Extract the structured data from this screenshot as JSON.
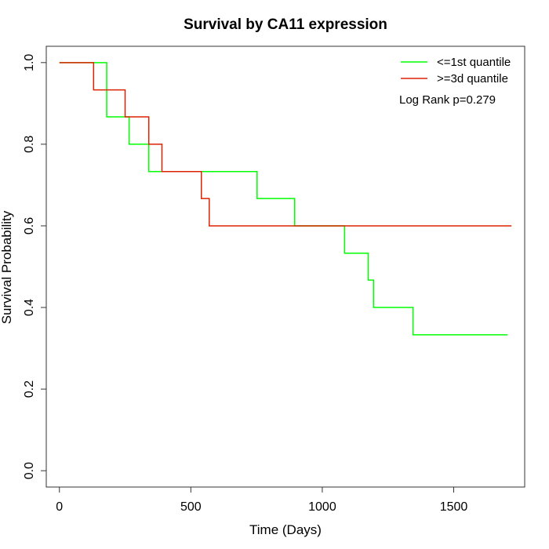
{
  "chart_data": {
    "type": "line",
    "title": "Survival by CA11 expression",
    "xlabel": "Time (Days)",
    "ylabel": "Survival Probability",
    "xlim": [
      -50,
      1770
    ],
    "ylim": [
      -0.04,
      1.04
    ],
    "x_ticks": [
      0,
      500,
      1000,
      1500
    ],
    "x_tick_labels": [
      "0",
      "500",
      "1000",
      "1500"
    ],
    "y_ticks": [
      0.0,
      0.2,
      0.4,
      0.6,
      0.8,
      1.0
    ],
    "y_tick_labels": [
      "0.0",
      "0.2",
      "0.4",
      "0.6",
      "0.8",
      "1.0"
    ],
    "grid": false,
    "legend_position": "top-right",
    "annotation": "Log Rank p=0.279",
    "series": [
      {
        "name": "<=1st quantile",
        "color": "#00ff00",
        "step": true,
        "points": [
          [
            0,
            1.0
          ],
          [
            170,
            1.0
          ],
          [
            180,
            0.867
          ],
          [
            265,
            0.867
          ],
          [
            265,
            0.8
          ],
          [
            340,
            0.8
          ],
          [
            340,
            0.733
          ],
          [
            752,
            0.733
          ],
          [
            752,
            0.667
          ],
          [
            895,
            0.667
          ],
          [
            895,
            0.6
          ],
          [
            1085,
            0.6
          ],
          [
            1085,
            0.533
          ],
          [
            1175,
            0.533
          ],
          [
            1175,
            0.467
          ],
          [
            1195,
            0.467
          ],
          [
            1195,
            0.4
          ],
          [
            1345,
            0.4
          ],
          [
            1345,
            0.333
          ],
          [
            1705,
            0.333
          ]
        ]
      },
      {
        "name": ">=3d quantile",
        "color": "#dd2200",
        "step": true,
        "points": [
          [
            0,
            1.0
          ],
          [
            130,
            1.0
          ],
          [
            130,
            0.933
          ],
          [
            250,
            0.933
          ],
          [
            250,
            0.867
          ],
          [
            340,
            0.867
          ],
          [
            340,
            0.8
          ],
          [
            390,
            0.8
          ],
          [
            390,
            0.733
          ],
          [
            540,
            0.733
          ],
          [
            540,
            0.667
          ],
          [
            570,
            0.667
          ],
          [
            570,
            0.6
          ],
          [
            1720,
            0.6
          ]
        ]
      }
    ]
  }
}
